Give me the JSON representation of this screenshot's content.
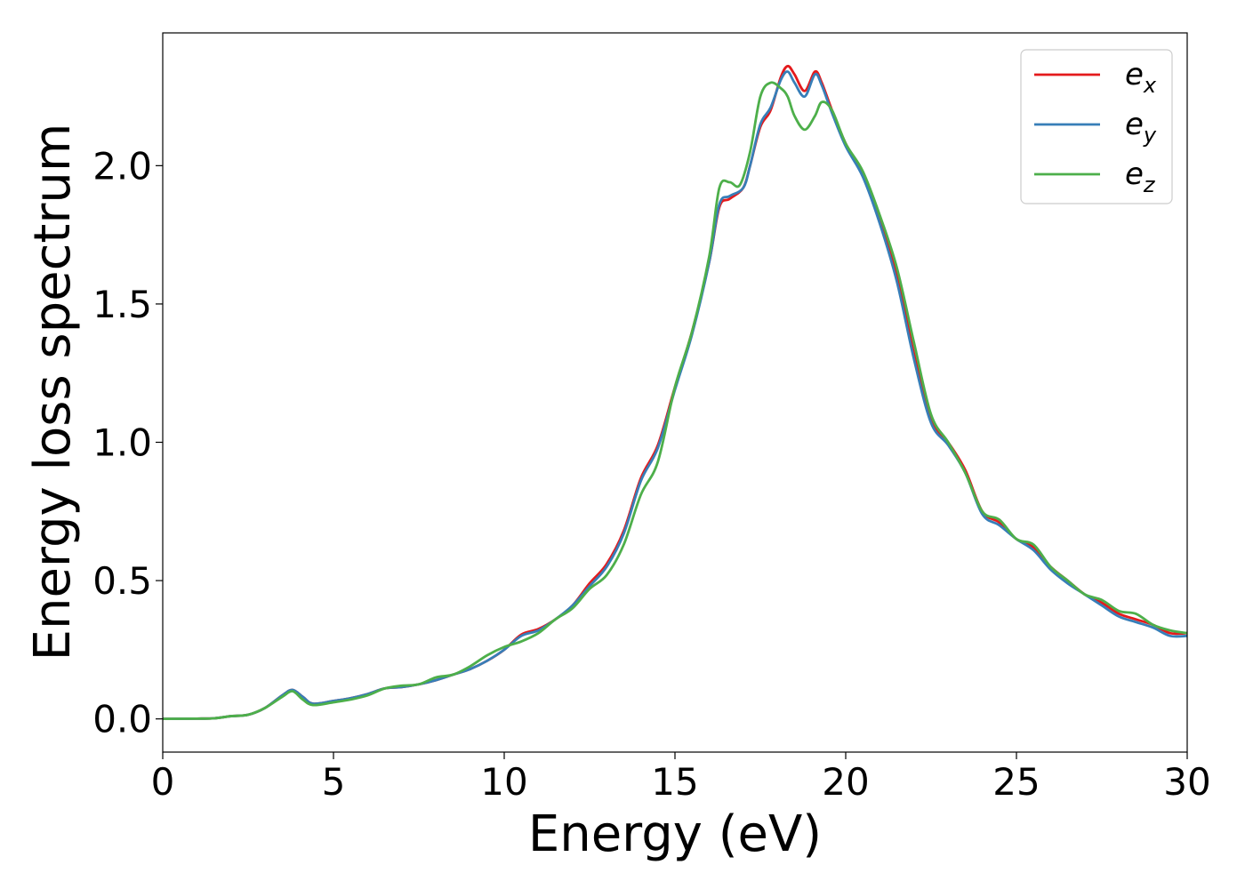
{
  "chart_data": {
    "type": "line",
    "title": "",
    "xlabel": "Energy (eV)",
    "ylabel": "Energy loss spectrum",
    "xlim": [
      0,
      30
    ],
    "ylim": [
      -0.12,
      2.48
    ],
    "xticks": [
      0,
      5,
      10,
      15,
      20,
      25,
      30
    ],
    "xtick_labels": [
      "0",
      "5",
      "10",
      "15",
      "20",
      "25",
      "30"
    ],
    "yticks": [
      0.0,
      0.5,
      1.0,
      1.5,
      2.0
    ],
    "ytick_labels": [
      "0.0",
      "0.5",
      "1.0",
      "1.5",
      "2.0"
    ],
    "grid": false,
    "legend_position": "top-right",
    "series": [
      {
        "name": "e",
        "subscript": "x",
        "color": "#e41a1c",
        "points": [
          [
            0,
            0
          ],
          [
            1,
            0.001
          ],
          [
            1.5,
            0.002
          ],
          [
            2,
            0.01
          ],
          [
            2.5,
            0.015
          ],
          [
            3,
            0.04
          ],
          [
            3.5,
            0.085
          ],
          [
            3.8,
            0.105
          ],
          [
            4.1,
            0.08
          ],
          [
            4.4,
            0.055
          ],
          [
            5,
            0.065
          ],
          [
            5.5,
            0.075
          ],
          [
            6,
            0.09
          ],
          [
            6.5,
            0.11
          ],
          [
            7,
            0.115
          ],
          [
            7.5,
            0.125
          ],
          [
            8,
            0.14
          ],
          [
            8.5,
            0.16
          ],
          [
            9,
            0.18
          ],
          [
            9.5,
            0.21
          ],
          [
            10,
            0.25
          ],
          [
            10.5,
            0.305
          ],
          [
            11,
            0.325
          ],
          [
            11.5,
            0.36
          ],
          [
            12,
            0.41
          ],
          [
            12.5,
            0.49
          ],
          [
            13,
            0.56
          ],
          [
            13.5,
            0.68
          ],
          [
            14,
            0.87
          ],
          [
            14.5,
            0.99
          ],
          [
            15,
            1.2
          ],
          [
            15.5,
            1.4
          ],
          [
            16,
            1.65
          ],
          [
            16.3,
            1.85
          ],
          [
            16.6,
            1.88
          ],
          [
            17,
            1.92
          ],
          [
            17.2,
            2.0
          ],
          [
            17.5,
            2.14
          ],
          [
            17.8,
            2.2
          ],
          [
            18.1,
            2.32
          ],
          [
            18.3,
            2.36
          ],
          [
            18.5,
            2.33
          ],
          [
            18.8,
            2.27
          ],
          [
            19.1,
            2.34
          ],
          [
            19.3,
            2.3
          ],
          [
            19.6,
            2.2
          ],
          [
            20,
            2.08
          ],
          [
            20.5,
            1.97
          ],
          [
            21,
            1.8
          ],
          [
            21.5,
            1.6
          ],
          [
            22,
            1.32
          ],
          [
            22.5,
            1.08
          ],
          [
            23,
            1.0
          ],
          [
            23.5,
            0.9
          ],
          [
            24,
            0.75
          ],
          [
            24.5,
            0.71
          ],
          [
            25,
            0.65
          ],
          [
            25.5,
            0.62
          ],
          [
            26,
            0.55
          ],
          [
            26.5,
            0.5
          ],
          [
            27,
            0.45
          ],
          [
            27.5,
            0.42
          ],
          [
            28,
            0.38
          ],
          [
            28.5,
            0.36
          ],
          [
            29,
            0.34
          ],
          [
            29.5,
            0.31
          ],
          [
            30,
            0.31
          ]
        ]
      },
      {
        "name": "e",
        "subscript": "y",
        "color": "#377eb8",
        "points": [
          [
            0,
            0
          ],
          [
            1,
            0.001
          ],
          [
            1.5,
            0.002
          ],
          [
            2,
            0.01
          ],
          [
            2.5,
            0.015
          ],
          [
            3,
            0.04
          ],
          [
            3.5,
            0.085
          ],
          [
            3.8,
            0.105
          ],
          [
            4.1,
            0.08
          ],
          [
            4.4,
            0.055
          ],
          [
            5,
            0.065
          ],
          [
            5.5,
            0.075
          ],
          [
            6,
            0.09
          ],
          [
            6.5,
            0.11
          ],
          [
            7,
            0.115
          ],
          [
            7.5,
            0.125
          ],
          [
            8,
            0.14
          ],
          [
            8.5,
            0.16
          ],
          [
            9,
            0.18
          ],
          [
            9.5,
            0.21
          ],
          [
            10,
            0.25
          ],
          [
            10.5,
            0.3
          ],
          [
            11,
            0.32
          ],
          [
            11.5,
            0.36
          ],
          [
            12,
            0.41
          ],
          [
            12.5,
            0.48
          ],
          [
            13,
            0.55
          ],
          [
            13.5,
            0.67
          ],
          [
            14,
            0.86
          ],
          [
            14.5,
            0.98
          ],
          [
            15,
            1.19
          ],
          [
            15.5,
            1.39
          ],
          [
            16,
            1.65
          ],
          [
            16.3,
            1.86
          ],
          [
            16.6,
            1.89
          ],
          [
            17,
            1.92
          ],
          [
            17.2,
            2.0
          ],
          [
            17.5,
            2.15
          ],
          [
            17.8,
            2.21
          ],
          [
            18.1,
            2.31
          ],
          [
            18.3,
            2.34
          ],
          [
            18.5,
            2.3
          ],
          [
            18.8,
            2.25
          ],
          [
            19.1,
            2.33
          ],
          [
            19.3,
            2.29
          ],
          [
            19.6,
            2.19
          ],
          [
            20,
            2.07
          ],
          [
            20.5,
            1.96
          ],
          [
            21,
            1.79
          ],
          [
            21.5,
            1.58
          ],
          [
            22,
            1.3
          ],
          [
            22.5,
            1.07
          ],
          [
            23,
            0.99
          ],
          [
            23.5,
            0.89
          ],
          [
            24,
            0.74
          ],
          [
            24.5,
            0.7
          ],
          [
            25,
            0.65
          ],
          [
            25.5,
            0.61
          ],
          [
            26,
            0.54
          ],
          [
            26.5,
            0.49
          ],
          [
            27,
            0.45
          ],
          [
            27.5,
            0.41
          ],
          [
            28,
            0.37
          ],
          [
            28.5,
            0.35
          ],
          [
            29,
            0.33
          ],
          [
            29.5,
            0.3
          ],
          [
            30,
            0.3
          ]
        ]
      },
      {
        "name": "e",
        "subscript": "z",
        "color": "#4daf4a",
        "points": [
          [
            0,
            0
          ],
          [
            1,
            0.001
          ],
          [
            1.5,
            0.002
          ],
          [
            2,
            0.01
          ],
          [
            2.5,
            0.015
          ],
          [
            3,
            0.04
          ],
          [
            3.5,
            0.08
          ],
          [
            3.8,
            0.1
          ],
          [
            4.1,
            0.07
          ],
          [
            4.4,
            0.05
          ],
          [
            5,
            0.06
          ],
          [
            5.5,
            0.07
          ],
          [
            6,
            0.085
          ],
          [
            6.5,
            0.11
          ],
          [
            7,
            0.12
          ],
          [
            7.5,
            0.125
          ],
          [
            8,
            0.15
          ],
          [
            8.5,
            0.16
          ],
          [
            9,
            0.19
          ],
          [
            9.5,
            0.23
          ],
          [
            10,
            0.26
          ],
          [
            10.5,
            0.28
          ],
          [
            11,
            0.31
          ],
          [
            11.5,
            0.36
          ],
          [
            12,
            0.4
          ],
          [
            12.5,
            0.47
          ],
          [
            13,
            0.52
          ],
          [
            13.5,
            0.63
          ],
          [
            14,
            0.81
          ],
          [
            14.5,
            0.93
          ],
          [
            15,
            1.2
          ],
          [
            15.5,
            1.4
          ],
          [
            16,
            1.67
          ],
          [
            16.3,
            1.92
          ],
          [
            16.6,
            1.94
          ],
          [
            16.9,
            1.93
          ],
          [
            17.2,
            2.05
          ],
          [
            17.5,
            2.25
          ],
          [
            17.8,
            2.3
          ],
          [
            18.1,
            2.28
          ],
          [
            18.3,
            2.25
          ],
          [
            18.5,
            2.18
          ],
          [
            18.8,
            2.13
          ],
          [
            19.1,
            2.18
          ],
          [
            19.3,
            2.23
          ],
          [
            19.6,
            2.2
          ],
          [
            20,
            2.08
          ],
          [
            20.5,
            1.98
          ],
          [
            21,
            1.82
          ],
          [
            21.5,
            1.63
          ],
          [
            22,
            1.36
          ],
          [
            22.5,
            1.1
          ],
          [
            23,
            1.0
          ],
          [
            23.5,
            0.89
          ],
          [
            24,
            0.75
          ],
          [
            24.5,
            0.72
          ],
          [
            25,
            0.65
          ],
          [
            25.5,
            0.63
          ],
          [
            26,
            0.55
          ],
          [
            26.5,
            0.5
          ],
          [
            27,
            0.45
          ],
          [
            27.5,
            0.43
          ],
          [
            28,
            0.39
          ],
          [
            28.5,
            0.38
          ],
          [
            29,
            0.34
          ],
          [
            29.5,
            0.32
          ],
          [
            30,
            0.31
          ]
        ]
      }
    ]
  }
}
